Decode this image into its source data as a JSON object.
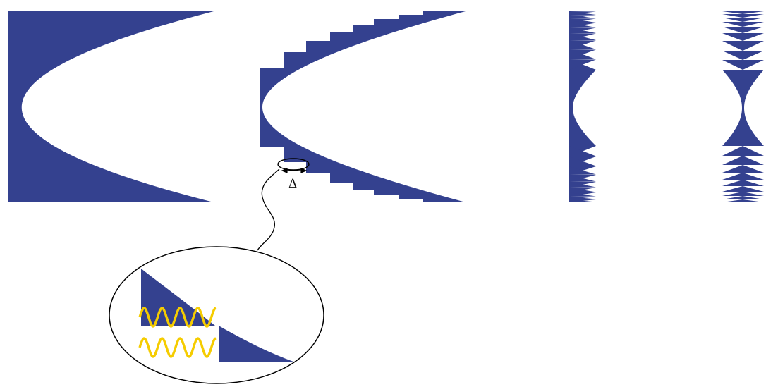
{
  "figure": {
    "gap_label": "Δ",
    "colors": {
      "lens_fill": "#34418f",
      "wave": "#f5cc00",
      "outline": "#000000",
      "background": "#ffffff"
    },
    "panels": [
      "solid-lens",
      "stepped-lens",
      "fresnel-half",
      "fresnel-full"
    ]
  }
}
